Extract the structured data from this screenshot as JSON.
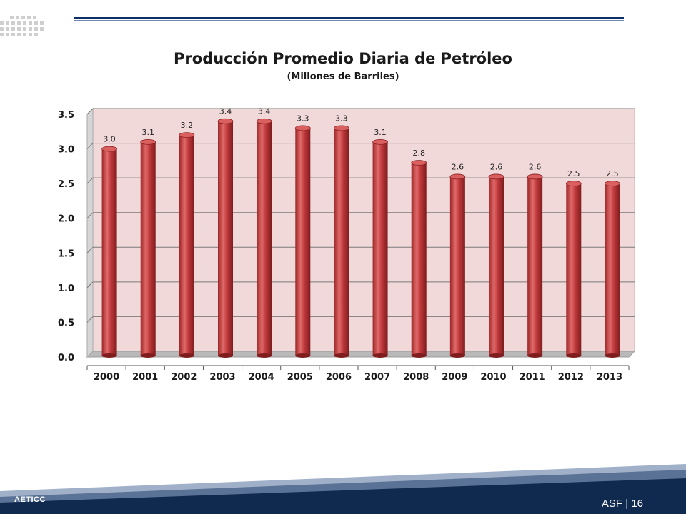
{
  "slide": {
    "footer_left": "AETICC",
    "footer_right": "ASF | 16"
  },
  "colors": {
    "bar": "#c0393b",
    "plot_bg": "#f2d9d9",
    "footer_dark": "#10294f",
    "footer_mid": "#5a7296",
    "accent_rule": "#0e2f66"
  },
  "chart_data": {
    "type": "bar",
    "title": "Producción Promedio Diaria de Petróleo",
    "subtitle": "(Millones de Barriles)",
    "xlabel": "",
    "ylabel": "",
    "categories": [
      "2000",
      "2001",
      "2002",
      "2003",
      "2004",
      "2005",
      "2006",
      "2007",
      "2008",
      "2009",
      "2010",
      "2011",
      "2012",
      "2013"
    ],
    "values": [
      3.0,
      3.1,
      3.2,
      3.4,
      3.4,
      3.3,
      3.3,
      3.1,
      2.8,
      2.6,
      2.6,
      2.6,
      2.5,
      2.5
    ],
    "data_labels": [
      "3.0",
      "3.1",
      "3.2",
      "3.4",
      "3.4",
      "3.3",
      "3.3",
      "3.1",
      "2.8",
      "2.6",
      "2.6",
      "2.6",
      "2.5",
      "2.5"
    ],
    "ylim": [
      0,
      3.5
    ],
    "yticks": [
      "0.0",
      "0.5",
      "1.0",
      "1.5",
      "2.0",
      "2.5",
      "3.0",
      "3.5"
    ],
    "grid": true,
    "legend": "none"
  }
}
